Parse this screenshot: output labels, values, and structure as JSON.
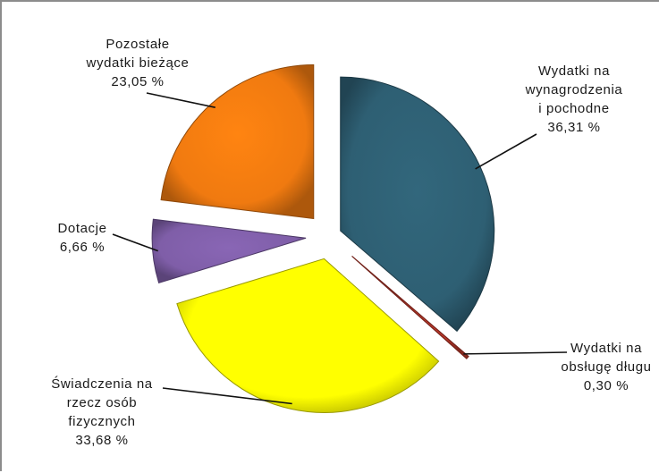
{
  "chart_data": {
    "type": "pie",
    "exploded": true,
    "slices": [
      {
        "lines": [
          "Wydatki na",
          "wynagrodzenia",
          "i pochodne"
        ],
        "percent_label": "36,31 %",
        "value": 36.31,
        "color": "#2e5f73"
      },
      {
        "lines": [
          "Wydatki na",
          "obsługę długu"
        ],
        "percent_label": "0,30 %",
        "value": 0.3,
        "color": "#c0392b"
      },
      {
        "lines": [
          "Świadczenia na",
          "rzecz osób",
          "fizycznych"
        ],
        "percent_label": "33,68 %",
        "value": 33.68,
        "color": "#ffff00"
      },
      {
        "lines": [
          "Dotacje"
        ],
        "percent_label": "6,66 %",
        "value": 6.66,
        "color": "#7f5ea8"
      },
      {
        "lines": [
          "Pozostałe",
          "wydatki bieżące"
        ],
        "percent_label": "23,05 %",
        "value": 23.05,
        "color": "#f07a10"
      }
    ]
  }
}
